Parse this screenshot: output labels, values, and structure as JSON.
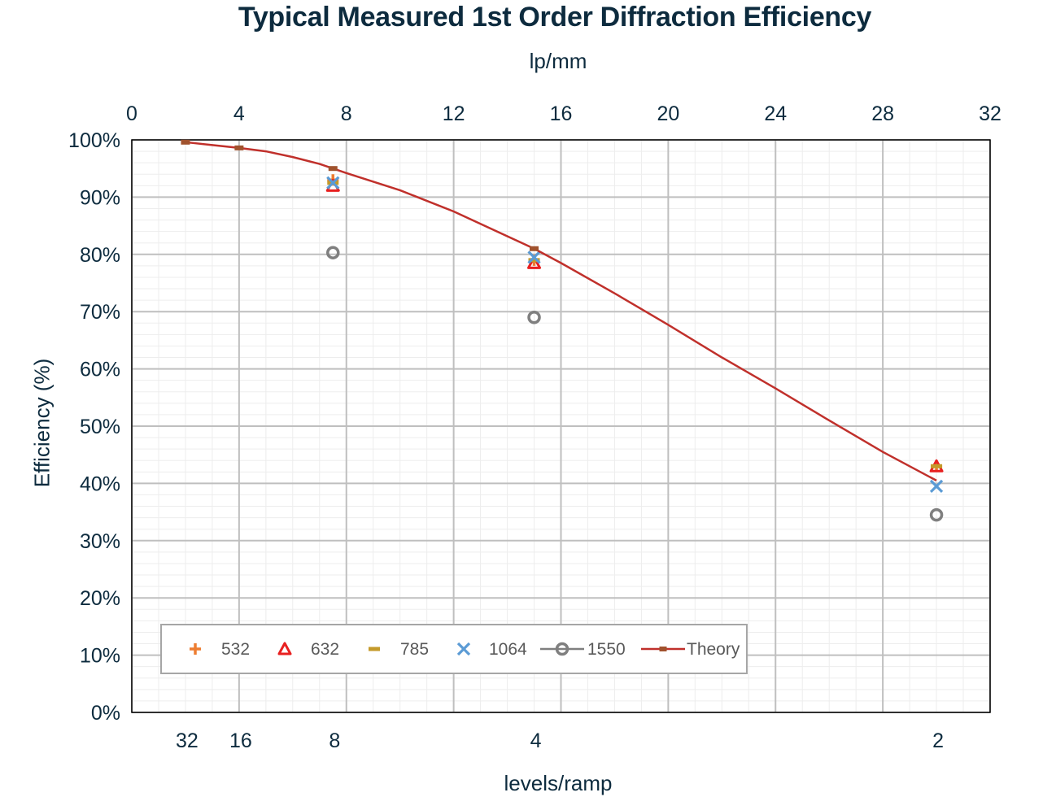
{
  "chart_data": {
    "type": "scatter",
    "title": "Typical Measured 1st Order Diffraction Efficiency",
    "x_top_label": "lp/mm",
    "x_bottom_label": "levels/ramp",
    "ylabel": "Efficiency (%)",
    "xlim": [
      0,
      32
    ],
    "ylim": [
      0,
      100
    ],
    "x_top_ticks": [
      "0",
      "4",
      "8",
      "12",
      "16",
      "20",
      "24",
      "28",
      "32"
    ],
    "x_top_tick_values": [
      0,
      4,
      8,
      12,
      16,
      20,
      24,
      28,
      32
    ],
    "y_ticks": [
      "0%",
      "10%",
      "20%",
      "30%",
      "40%",
      "50%",
      "60%",
      "70%",
      "80%",
      "90%",
      "100%"
    ],
    "y_tick_values": [
      0,
      10,
      20,
      30,
      40,
      50,
      60,
      70,
      80,
      90,
      100
    ],
    "x_bottom_ticks": [
      {
        "label": "32",
        "x": 2
      },
      {
        "label": "16",
        "x": 4
      },
      {
        "label": "8",
        "x": 7.5
      },
      {
        "label": "4",
        "x": 15
      },
      {
        "label": "2",
        "x": 30
      }
    ],
    "grid": true,
    "legend_position": "bottom-left",
    "series": [
      {
        "name": "532",
        "marker": "plus",
        "color": "#ed7d31",
        "x": [
          7.5,
          15,
          30
        ],
        "y": [
          93,
          79,
          43
        ]
      },
      {
        "name": "632",
        "marker": "triangle",
        "color": "#e82020",
        "x": [
          7.5,
          15,
          30
        ],
        "y": [
          92,
          78.5,
          43
        ]
      },
      {
        "name": "785",
        "marker": "dash",
        "color": "#c49a2a",
        "x": [
          7.5,
          15,
          30
        ],
        "y": [
          92.5,
          79,
          43
        ]
      },
      {
        "name": "1064",
        "marker": "x",
        "color": "#5b9bd5",
        "x": [
          7.5,
          15,
          30
        ],
        "y": [
          92.5,
          79.5,
          39.5
        ]
      },
      {
        "name": "1550",
        "marker": "circle",
        "color": "#7f7f7f",
        "x": [
          7.5,
          15,
          30
        ],
        "y": [
          80.3,
          69,
          34.5
        ]
      },
      {
        "name": "Theory",
        "marker": "line",
        "color": "#c0302b",
        "x": [
          2,
          3,
          4,
          5,
          6,
          7,
          7.5,
          8,
          10,
          12,
          15,
          16,
          18,
          20,
          22,
          24,
          26,
          28,
          30
        ],
        "y": [
          99.6,
          99.1,
          98.6,
          98.0,
          97.0,
          95.8,
          95.0,
          94.2,
          91.2,
          87.5,
          81.0,
          78.5,
          73.2,
          67.7,
          62.0,
          56.6,
          51.0,
          45.5,
          40.5
        ]
      },
      {
        "name": "Theory-points",
        "marker": "small-rect",
        "color": "#a0522d",
        "x": [
          2,
          4,
          7.5,
          15
        ],
        "y": [
          99.6,
          98.6,
          95.0,
          81.0
        ]
      }
    ]
  }
}
